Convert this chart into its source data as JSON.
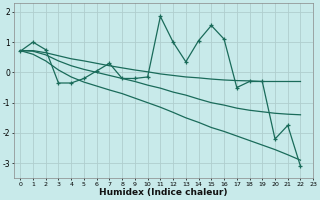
{
  "xlabel": "Humidex (Indice chaleur)",
  "bg_color": "#c8eaea",
  "grid_color": "#b0cece",
  "line_color": "#1a6b5a",
  "xlim": [
    -0.5,
    23
  ],
  "ylim": [
    -3.5,
    2.3
  ],
  "yticks": [
    -3,
    -2,
    -1,
    0,
    1,
    2
  ],
  "xticks": [
    0,
    1,
    2,
    3,
    4,
    5,
    6,
    7,
    8,
    9,
    10,
    11,
    12,
    13,
    14,
    15,
    16,
    17,
    18,
    19,
    20,
    21,
    22,
    23
  ],
  "series": {
    "jagged": [
      0.7,
      1.0,
      0.75,
      -0.35,
      -0.35,
      -0.2,
      0.05,
      0.3,
      -0.2,
      -0.2,
      -0.15,
      1.85,
      1.0,
      0.35,
      1.05,
      1.55,
      1.1,
      -0.5,
      -0.3,
      -0.3,
      -2.2,
      -1.75,
      -3.1
    ],
    "upper_smooth": [
      0.72,
      0.72,
      0.65,
      0.55,
      0.45,
      0.38,
      0.3,
      0.22,
      0.15,
      0.08,
      0.02,
      -0.05,
      -0.1,
      -0.15,
      -0.18,
      -0.22,
      -0.25,
      -0.27,
      -0.28,
      -0.3,
      -0.3,
      -0.3,
      -0.3
    ],
    "mid_smooth": [
      0.72,
      0.7,
      0.58,
      0.38,
      0.22,
      0.1,
      0.0,
      -0.1,
      -0.2,
      -0.3,
      -0.42,
      -0.52,
      -0.65,
      -0.75,
      -0.88,
      -1.0,
      -1.08,
      -1.18,
      -1.25,
      -1.3,
      -1.35,
      -1.38,
      -1.4
    ],
    "lower_smooth": [
      0.72,
      0.6,
      0.38,
      0.08,
      -0.15,
      -0.32,
      -0.45,
      -0.58,
      -0.7,
      -0.85,
      -1.0,
      -1.15,
      -1.32,
      -1.5,
      -1.65,
      -1.82,
      -1.95,
      -2.1,
      -2.25,
      -2.4,
      -2.55,
      -2.72,
      -2.9
    ]
  }
}
